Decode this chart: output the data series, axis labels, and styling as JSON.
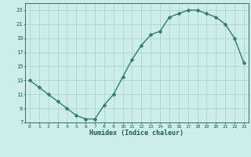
{
  "x": [
    0,
    1,
    2,
    3,
    4,
    5,
    6,
    7,
    8,
    9,
    10,
    11,
    12,
    13,
    14,
    15,
    16,
    17,
    18,
    19,
    20,
    21,
    22,
    23
  ],
  "y": [
    13,
    12,
    11,
    10,
    9,
    8,
    7.5,
    7.5,
    9.5,
    11,
    13.5,
    16,
    18,
    19.5,
    20,
    22,
    22.5,
    23,
    23,
    22.5,
    22,
    21,
    19,
    15.5
  ],
  "line_color": "#2e7d6e",
  "marker_color": "#2e7d6e",
  "background_color": "#cdeee8",
  "grid_color": "#b0d4cc",
  "xlabel": "Humidex (Indice chaleur)",
  "xlabel_color": "#1a5c50",
  "tick_color": "#1a5c50",
  "ylim": [
    7,
    24
  ],
  "xlim": [
    -0.5,
    23.5
  ],
  "yticks": [
    7,
    9,
    11,
    13,
    15,
    17,
    19,
    21,
    23
  ],
  "xticks": [
    0,
    1,
    2,
    3,
    4,
    5,
    6,
    7,
    8,
    9,
    10,
    11,
    12,
    13,
    14,
    15,
    16,
    17,
    18,
    19,
    20,
    21,
    22,
    23
  ],
  "line_width": 1.0,
  "marker_size": 2.5
}
